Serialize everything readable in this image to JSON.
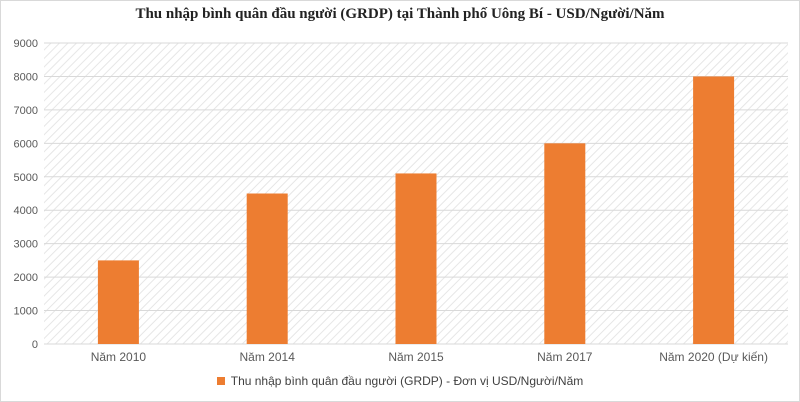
{
  "chart_data": {
    "type": "bar",
    "title": "Thu  nhập bình  quân đầu người (GRDP) tại Thành  phố  Uông Bí - USD/Người/Năm",
    "categories": [
      "Năm 2010",
      "Năm 2014",
      "Năm 2015",
      "Năm 2017",
      "Năm 2020 (Dự kiến)"
    ],
    "series": [
      {
        "name": "Thu nhập bình quân đầu người (GRDP) - Đơn vị USD/Người/Năm",
        "values": [
          2500,
          4500,
          5100,
          6000,
          8000
        ]
      }
    ],
    "ylim": [
      0,
      9000
    ],
    "yticks": [
      "0",
      "1000",
      "2000",
      "3000",
      "4000",
      "5000",
      "6000",
      "7000",
      "8000",
      "9000"
    ],
    "xlabel": "",
    "ylabel": "",
    "grid": true,
    "legend": "bottom",
    "bar_color": "#ED7D31",
    "grid_color": "#d9d9d9"
  }
}
